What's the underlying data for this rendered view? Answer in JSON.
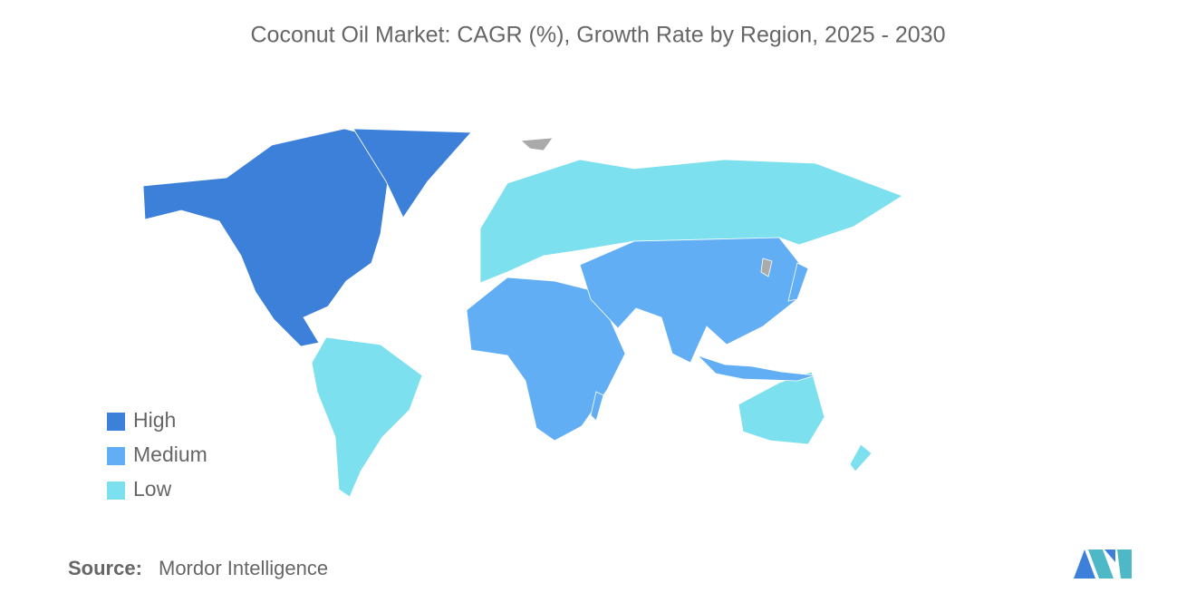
{
  "title": "Coconut Oil Market: CAGR (%), Growth Rate by Region, 2025 - 2030",
  "legend": [
    {
      "label": "High",
      "color": "#3d80da"
    },
    {
      "label": "Medium",
      "color": "#62aef5"
    },
    {
      "label": "Low",
      "color": "#7de0ee"
    }
  ],
  "source": {
    "label": "Source:",
    "value": "Mordor Intelligence"
  }
}
